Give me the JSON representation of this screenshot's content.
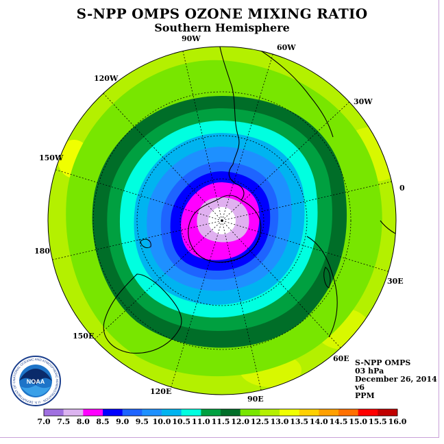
{
  "header": {
    "title": "S-NPP OMPS OZONE MIXING RATIO",
    "subtitle": "Southern Hemisphere"
  },
  "map": {
    "projection": "south-polar-stereographic",
    "longitude_labels": [
      "90W",
      "60W",
      "30W",
      "0",
      "30E",
      "60E",
      "90E",
      "120E",
      "150E",
      "180",
      "150W",
      "120W"
    ],
    "contour_levels_ppm": [
      {
        "max": 8.0,
        "color": "#e0b0f0",
        "description": "pole"
      },
      {
        "max": 8.5,
        "color": "#ff00ff"
      },
      {
        "max": 9.0,
        "color": "#0000ff"
      },
      {
        "max": 9.5,
        "color": "#1e64ff"
      },
      {
        "max": 10.0,
        "color": "#1e90ff"
      },
      {
        "max": 10.5,
        "color": "#00b4f0"
      },
      {
        "max": 11.0,
        "color": "#00ffe0"
      },
      {
        "max": 11.5,
        "color": "#00a040"
      },
      {
        "max": 12.0,
        "color": "#006e28"
      },
      {
        "max": 12.5,
        "color": "#78e600"
      },
      {
        "max": 13.0,
        "color": "#b4f000"
      }
    ]
  },
  "info": {
    "instrument": "S-NPP OMPS",
    "level": "03 hPa",
    "date": "December 26, 2014",
    "version": "v6",
    "units": "PPM"
  },
  "logo": {
    "text": "NOAA",
    "ring_text": "NATIONAL OCEANIC AND ATMOSPHERIC ADMINISTRATION · U.S. DEPARTMENT OF COMMERCE"
  },
  "colorbar": {
    "labels": [
      "7.0",
      "7.5",
      "8.0",
      "8.5",
      "9.0",
      "9.5",
      "10.0",
      "10.5",
      "11.0",
      "11.5",
      "12.0",
      "12.5",
      "13.0",
      "13.5",
      "14.0",
      "14.5",
      "15.0",
      "15.5",
      "16.0"
    ],
    "colors": [
      "#a070e0",
      "#dcb4f0",
      "#ff00ff",
      "#0000ff",
      "#1e64ff",
      "#1e90ff",
      "#00b4f0",
      "#00ffe0",
      "#00a040",
      "#006e28",
      "#78e600",
      "#b4f000",
      "#f0ff00",
      "#ffd000",
      "#ffa000",
      "#ff7000",
      "#ff0000",
      "#c00000",
      "#8b5a3c"
    ]
  }
}
